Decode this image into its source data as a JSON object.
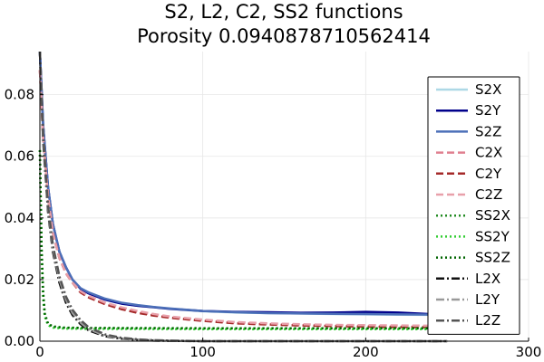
{
  "chart_data": {
    "type": "line",
    "title": "S2, L2, C2, SS2 functions",
    "subtitle": "Porosity 0.0940878710562414",
    "xlabel": "",
    "ylabel": "",
    "xlim": [
      0,
      300
    ],
    "ylim": [
      0,
      0.094
    ],
    "x_ticks": [
      0,
      100,
      200,
      300
    ],
    "x_tick_labels": [
      "0",
      "100",
      "200",
      "300"
    ],
    "y_ticks": [
      0,
      0.02,
      0.04,
      0.06,
      0.08
    ],
    "y_tick_labels": [
      "0.00",
      "0.02",
      "0.04",
      "0.06",
      "0.08"
    ],
    "grid": true,
    "legend_position": "right",
    "series": [
      {
        "name": "S2X",
        "color": "#add8e6",
        "style": "solid",
        "width": 2.5,
        "points": [
          [
            0,
            0.094
          ],
          [
            2,
            0.07
          ],
          [
            5,
            0.05
          ],
          [
            8,
            0.038
          ],
          [
            12,
            0.029
          ],
          [
            16,
            0.024
          ],
          [
            20,
            0.02
          ],
          [
            25,
            0.017
          ],
          [
            30,
            0.0155
          ],
          [
            40,
            0.0135
          ],
          [
            50,
            0.0122
          ],
          [
            60,
            0.0115
          ],
          [
            70,
            0.011
          ],
          [
            80,
            0.0105
          ],
          [
            100,
            0.0097
          ],
          [
            120,
            0.0093
          ],
          [
            140,
            0.0091
          ],
          [
            160,
            0.009
          ],
          [
            180,
            0.0088
          ],
          [
            200,
            0.0087
          ],
          [
            220,
            0.0086
          ],
          [
            250,
            0.0085
          ]
        ]
      },
      {
        "name": "S2Y",
        "color": "#00008b",
        "style": "solid",
        "width": 2.5,
        "points": [
          [
            0,
            0.094
          ],
          [
            2,
            0.07
          ],
          [
            5,
            0.05
          ],
          [
            8,
            0.038
          ],
          [
            12,
            0.029
          ],
          [
            16,
            0.024
          ],
          [
            20,
            0.02
          ],
          [
            25,
            0.017
          ],
          [
            30,
            0.0155
          ],
          [
            40,
            0.0135
          ],
          [
            50,
            0.0122
          ],
          [
            60,
            0.0115
          ],
          [
            70,
            0.011
          ],
          [
            80,
            0.0105
          ],
          [
            100,
            0.0098
          ],
          [
            120,
            0.0095
          ],
          [
            140,
            0.0094
          ],
          [
            160,
            0.0092
          ],
          [
            180,
            0.0093
          ],
          [
            200,
            0.0095
          ],
          [
            220,
            0.0093
          ],
          [
            250,
            0.0085
          ]
        ]
      },
      {
        "name": "S2Z",
        "color": "#4c6fb8",
        "style": "solid",
        "width": 2.5,
        "points": [
          [
            0,
            0.094
          ],
          [
            2,
            0.07
          ],
          [
            5,
            0.05
          ],
          [
            8,
            0.038
          ],
          [
            12,
            0.029
          ],
          [
            16,
            0.024
          ],
          [
            20,
            0.02
          ],
          [
            25,
            0.0172
          ],
          [
            30,
            0.0158
          ],
          [
            40,
            0.0138
          ],
          [
            50,
            0.0125
          ],
          [
            60,
            0.0117
          ],
          [
            70,
            0.0111
          ],
          [
            80,
            0.0106
          ],
          [
            100,
            0.0098
          ],
          [
            120,
            0.0094
          ],
          [
            140,
            0.0091
          ],
          [
            160,
            0.009
          ],
          [
            180,
            0.0089
          ],
          [
            200,
            0.0088
          ],
          [
            220,
            0.0087
          ],
          [
            250,
            0.0086
          ]
        ]
      },
      {
        "name": "C2X",
        "color": "#e08090",
        "style": "dashed",
        "width": 2.5,
        "points": [
          [
            0,
            0.088
          ],
          [
            2,
            0.066
          ],
          [
            5,
            0.047
          ],
          [
            8,
            0.035
          ],
          [
            12,
            0.027
          ],
          [
            16,
            0.022
          ],
          [
            20,
            0.019
          ],
          [
            25,
            0.016
          ],
          [
            30,
            0.0145
          ],
          [
            40,
            0.0122
          ],
          [
            50,
            0.0107
          ],
          [
            60,
            0.0095
          ],
          [
            70,
            0.0085
          ],
          [
            80,
            0.0078
          ],
          [
            100,
            0.0068
          ],
          [
            120,
            0.006
          ],
          [
            140,
            0.0056
          ],
          [
            160,
            0.0053
          ],
          [
            180,
            0.0051
          ],
          [
            200,
            0.005
          ],
          [
            220,
            0.0048
          ],
          [
            250,
            0.0046
          ]
        ]
      },
      {
        "name": "C2Y",
        "color": "#a52a2a",
        "style": "dashed",
        "width": 2.5,
        "points": [
          [
            0,
            0.088
          ],
          [
            2,
            0.066
          ],
          [
            5,
            0.047
          ],
          [
            8,
            0.035
          ],
          [
            12,
            0.027
          ],
          [
            16,
            0.022
          ],
          [
            20,
            0.019
          ],
          [
            25,
            0.0158
          ],
          [
            30,
            0.0142
          ],
          [
            40,
            0.012
          ],
          [
            50,
            0.0104
          ],
          [
            60,
            0.0092
          ],
          [
            70,
            0.0083
          ],
          [
            80,
            0.0076
          ],
          [
            100,
            0.0066
          ],
          [
            120,
            0.0058
          ],
          [
            140,
            0.0054
          ],
          [
            160,
            0.0051
          ],
          [
            180,
            0.0049
          ],
          [
            200,
            0.0047
          ],
          [
            220,
            0.0046
          ],
          [
            250,
            0.0045
          ]
        ]
      },
      {
        "name": "C2Z",
        "color": "#e8a0aa",
        "style": "dashed",
        "width": 2.5,
        "points": [
          [
            0,
            0.088
          ],
          [
            2,
            0.066
          ],
          [
            5,
            0.047
          ],
          [
            8,
            0.035
          ],
          [
            12,
            0.027
          ],
          [
            16,
            0.022
          ],
          [
            20,
            0.019
          ],
          [
            25,
            0.0162
          ],
          [
            30,
            0.0147
          ],
          [
            40,
            0.0125
          ],
          [
            50,
            0.011
          ],
          [
            60,
            0.0098
          ],
          [
            70,
            0.0088
          ],
          [
            80,
            0.008
          ],
          [
            100,
            0.007
          ],
          [
            120,
            0.0062
          ],
          [
            140,
            0.0058
          ],
          [
            160,
            0.0055
          ],
          [
            180,
            0.0053
          ],
          [
            200,
            0.0052
          ],
          [
            220,
            0.0051
          ],
          [
            250,
            0.005
          ]
        ]
      },
      {
        "name": "SS2X",
        "color": "#228b22",
        "style": "dotted",
        "width": 2.5,
        "points": [
          [
            0,
            0.062
          ],
          [
            1,
            0.03
          ],
          [
            2,
            0.015
          ],
          [
            3,
            0.0085
          ],
          [
            5,
            0.0055
          ],
          [
            8,
            0.0046
          ],
          [
            15,
            0.0043
          ],
          [
            30,
            0.0042
          ],
          [
            100,
            0.0041
          ],
          [
            200,
            0.0041
          ],
          [
            250,
            0.0041
          ]
        ]
      },
      {
        "name": "SS2Y",
        "color": "#32cd32",
        "style": "dotted",
        "width": 2.5,
        "points": [
          [
            0,
            0.062
          ],
          [
            1,
            0.028
          ],
          [
            2,
            0.014
          ],
          [
            3,
            0.008
          ],
          [
            5,
            0.0052
          ],
          [
            8,
            0.0044
          ],
          [
            15,
            0.0041
          ],
          [
            30,
            0.004
          ],
          [
            100,
            0.0039
          ],
          [
            200,
            0.0039
          ],
          [
            250,
            0.0039
          ]
        ]
      },
      {
        "name": "SS2Z",
        "color": "#006400",
        "style": "dotted",
        "width": 2.5,
        "points": [
          [
            0,
            0.062
          ],
          [
            1,
            0.031
          ],
          [
            2,
            0.016
          ],
          [
            3,
            0.009
          ],
          [
            5,
            0.0057
          ],
          [
            8,
            0.0048
          ],
          [
            15,
            0.0044
          ],
          [
            30,
            0.0043
          ],
          [
            100,
            0.0042
          ],
          [
            200,
            0.0042
          ],
          [
            250,
            0.0042
          ]
        ]
      },
      {
        "name": "L2X",
        "color": "#111111",
        "style": "dashdot",
        "width": 2.5,
        "points": [
          [
            0,
            0.094
          ],
          [
            2,
            0.065
          ],
          [
            5,
            0.042
          ],
          [
            8,
            0.029
          ],
          [
            12,
            0.019
          ],
          [
            16,
            0.0125
          ],
          [
            20,
            0.0085
          ],
          [
            25,
            0.0055
          ],
          [
            30,
            0.0035
          ],
          [
            40,
            0.0016
          ],
          [
            50,
            0.0008
          ],
          [
            60,
            0.0004
          ],
          [
            70,
            0.0002
          ],
          [
            80,
            0.0001
          ],
          [
            100,
            0
          ],
          [
            150,
            0
          ],
          [
            250,
            0
          ]
        ]
      },
      {
        "name": "L2Y",
        "color": "#999999",
        "style": "dashdot",
        "width": 2.5,
        "points": [
          [
            0,
            0.094
          ],
          [
            2,
            0.066
          ],
          [
            5,
            0.043
          ],
          [
            8,
            0.03
          ],
          [
            12,
            0.02
          ],
          [
            16,
            0.0135
          ],
          [
            20,
            0.0092
          ],
          [
            25,
            0.006
          ],
          [
            30,
            0.0039
          ],
          [
            40,
            0.0018
          ],
          [
            50,
            0.0009
          ],
          [
            60,
            0.0005
          ],
          [
            70,
            0.0003
          ],
          [
            80,
            0.0001
          ],
          [
            100,
            0
          ],
          [
            150,
            0
          ],
          [
            250,
            0
          ]
        ]
      },
      {
        "name": "L2Z",
        "color": "#555555",
        "style": "dashdot",
        "width": 2.5,
        "points": [
          [
            0,
            0.094
          ],
          [
            2,
            0.067
          ],
          [
            5,
            0.044
          ],
          [
            8,
            0.031
          ],
          [
            12,
            0.021
          ],
          [
            16,
            0.0145
          ],
          [
            20,
            0.0102
          ],
          [
            25,
            0.0068
          ],
          [
            30,
            0.0045
          ],
          [
            40,
            0.0022
          ],
          [
            50,
            0.0011
          ],
          [
            60,
            0.0006
          ],
          [
            70,
            0.0003
          ],
          [
            80,
            0.0002
          ],
          [
            100,
            0
          ],
          [
            150,
            0
          ],
          [
            250,
            0
          ]
        ]
      }
    ]
  }
}
